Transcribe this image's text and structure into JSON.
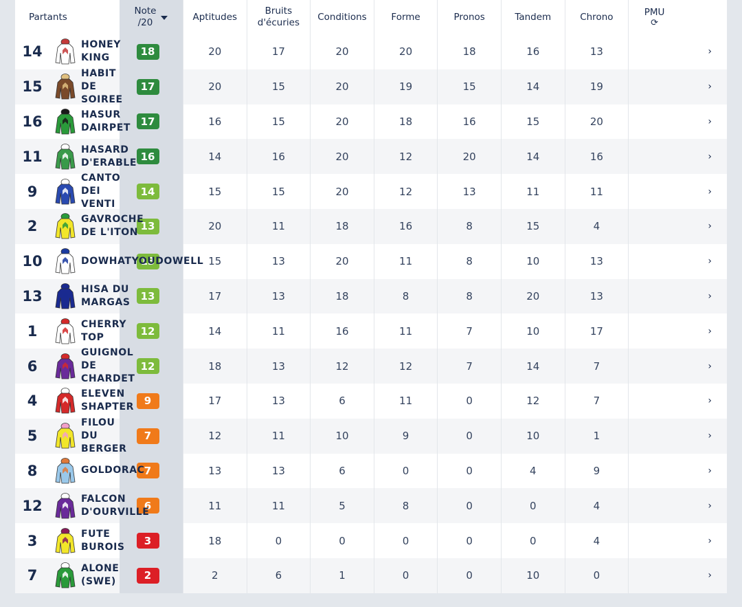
{
  "header": {
    "partants": "Partants",
    "note_line1": "Note",
    "note_line2": "/20",
    "aptitudes": "Aptitudes",
    "bruits_line1": "Bruits",
    "bruits_line2": "d'écuries",
    "conditions": "Conditions",
    "forme": "Forme",
    "pronos": "Pronos",
    "tandem": "Tandem",
    "chrono": "Chrono",
    "pmu": "PMU",
    "refresh_icon": "refresh-icon"
  },
  "colors": {
    "dark_green": "#2e8b3e",
    "light_green": "#7dbb3c",
    "orange": "#f07a1a",
    "red": "#dc1f26"
  },
  "rows": [
    {
      "num": "14",
      "name_l1": "HONEY",
      "name_l2": "KING",
      "name_l3": "",
      "name_l4": "",
      "note": "18",
      "note_color": "#2e8b3e",
      "aptitudes": "20",
      "bruits": "17",
      "conditions": "20",
      "forme": "20",
      "pronos": "18",
      "tandem": "16",
      "chrono": "13",
      "pmu": "›",
      "silk_primary": "#ffffff",
      "silk_secondary": "#c43a3a"
    },
    {
      "num": "15",
      "name_l1": "HABIT",
      "name_l2": "DE",
      "name_l3": "SOIREE",
      "name_l4": "",
      "note": "17",
      "note_color": "#2e8b3e",
      "aptitudes": "20",
      "bruits": "15",
      "conditions": "20",
      "forme": "19",
      "pronos": "15",
      "tandem": "14",
      "chrono": "19",
      "pmu": "›",
      "silk_primary": "#7a4a2a",
      "silk_secondary": "#e0c080"
    },
    {
      "num": "16",
      "name_l1": "HASUR",
      "name_l2": "DAIRPET",
      "name_l3": "",
      "name_l4": "",
      "note": "17",
      "note_color": "#2e8b3e",
      "aptitudes": "16",
      "bruits": "15",
      "conditions": "20",
      "forme": "18",
      "pronos": "16",
      "tandem": "15",
      "chrono": "20",
      "pmu": "›",
      "silk_primary": "#2a9a3a",
      "silk_secondary": "#1a1a1a"
    },
    {
      "num": "11",
      "name_l1": "HASARD",
      "name_l2": "D'ERABLE",
      "name_l3": "",
      "name_l4": "",
      "note": "16",
      "note_color": "#2e8b3e",
      "aptitudes": "14",
      "bruits": "16",
      "conditions": "20",
      "forme": "12",
      "pronos": "20",
      "tandem": "14",
      "chrono": "16",
      "pmu": "›",
      "silk_primary": "#3a9a4a",
      "silk_secondary": "#ffffff"
    },
    {
      "num": "9",
      "name_l1": "CANTO",
      "name_l2": "DEI",
      "name_l3": "VENTI",
      "name_l4": "",
      "note": "14",
      "note_color": "#7dbb3c",
      "aptitudes": "15",
      "bruits": "15",
      "conditions": "20",
      "forme": "12",
      "pronos": "13",
      "tandem": "11",
      "chrono": "11",
      "pmu": "›",
      "silk_primary": "#2a4ab0",
      "silk_secondary": "#ffffff"
    },
    {
      "num": "2",
      "name_l1": "GAVROCHE",
      "name_l2": "DE L'ITON",
      "name_l3": "",
      "name_l4": "",
      "note": "13",
      "note_color": "#7dbb3c",
      "aptitudes": "20",
      "bruits": "11",
      "conditions": "18",
      "forme": "16",
      "pronos": "8",
      "tandem": "15",
      "chrono": "4",
      "pmu": "›",
      "silk_primary": "#f2e62a",
      "silk_secondary": "#2a9a3a"
    },
    {
      "num": "10",
      "name_l1": "DOWHATYOUDOWELL",
      "name_l2": "",
      "name_l3": "",
      "name_l4": "",
      "note": "13",
      "note_color": "#7dbb3c",
      "aptitudes": "15",
      "bruits": "13",
      "conditions": "20",
      "forme": "11",
      "pronos": "8",
      "tandem": "10",
      "chrono": "13",
      "pmu": "›",
      "silk_primary": "#ffffff",
      "silk_secondary": "#1a3aa0"
    },
    {
      "num": "13",
      "name_l1": "HISA DU",
      "name_l2": "MARGAS",
      "name_l3": "",
      "name_l4": "",
      "note": "13",
      "note_color": "#7dbb3c",
      "aptitudes": "17",
      "bruits": "13",
      "conditions": "18",
      "forme": "8",
      "pronos": "8",
      "tandem": "20",
      "chrono": "13",
      "pmu": "›",
      "silk_primary": "#1a2a90",
      "silk_secondary": "#1a2a90"
    },
    {
      "num": "1",
      "name_l1": "CHERRY",
      "name_l2": "TOP",
      "name_l3": "",
      "name_l4": "",
      "note": "12",
      "note_color": "#7dbb3c",
      "aptitudes": "14",
      "bruits": "11",
      "conditions": "16",
      "forme": "11",
      "pronos": "7",
      "tandem": "10",
      "chrono": "17",
      "pmu": "›",
      "silk_primary": "#ffffff",
      "silk_secondary": "#d42a2a"
    },
    {
      "num": "6",
      "name_l1": "GUIGNOL",
      "name_l2": "DE",
      "name_l3": "CHARDET",
      "name_l4": "",
      "note": "12",
      "note_color": "#7dbb3c",
      "aptitudes": "18",
      "bruits": "13",
      "conditions": "12",
      "forme": "12",
      "pronos": "7",
      "tandem": "14",
      "chrono": "7",
      "pmu": "›",
      "silk_primary": "#6a2a9a",
      "silk_secondary": "#d42a2a"
    },
    {
      "num": "4",
      "name_l1": "ELEVEN",
      "name_l2": "SHAPTER",
      "name_l3": "",
      "name_l4": "",
      "note": "9",
      "note_color": "#f07a1a",
      "aptitudes": "17",
      "bruits": "13",
      "conditions": "6",
      "forme": "11",
      "pronos": "0",
      "tandem": "12",
      "chrono": "7",
      "pmu": "›",
      "silk_primary": "#d42a2a",
      "silk_secondary": "#ffffff"
    },
    {
      "num": "5",
      "name_l1": "FILOU",
      "name_l2": "DU",
      "name_l3": "BERGER",
      "name_l4": "",
      "note": "7",
      "note_color": "#f07a1a",
      "aptitudes": "12",
      "bruits": "11",
      "conditions": "10",
      "forme": "9",
      "pronos": "0",
      "tandem": "10",
      "chrono": "1",
      "pmu": "›",
      "silk_primary": "#f2e62a",
      "silk_secondary": "#f2a0c8"
    },
    {
      "num": "8",
      "name_l1": "GOLDORAC",
      "name_l2": "",
      "name_l3": "",
      "name_l4": "",
      "note": "7",
      "note_color": "#f07a1a",
      "aptitudes": "13",
      "bruits": "13",
      "conditions": "6",
      "forme": "0",
      "pronos": "0",
      "tandem": "4",
      "chrono": "9",
      "pmu": "›",
      "silk_primary": "#9ac8ea",
      "silk_secondary": "#e07a3a"
    },
    {
      "num": "12",
      "name_l1": "FALCON",
      "name_l2": "D'OURVILLE",
      "name_l3": "",
      "name_l4": "",
      "note": "6",
      "note_color": "#f07a1a",
      "aptitudes": "11",
      "bruits": "11",
      "conditions": "5",
      "forme": "8",
      "pronos": "0",
      "tandem": "0",
      "chrono": "4",
      "pmu": "›",
      "silk_primary": "#6a2a9a",
      "silk_secondary": "#ffffff"
    },
    {
      "num": "3",
      "name_l1": "FUTE",
      "name_l2": "BUROIS",
      "name_l3": "",
      "name_l4": "",
      "note": "3",
      "note_color": "#dc1f26",
      "aptitudes": "18",
      "bruits": "0",
      "conditions": "0",
      "forme": "0",
      "pronos": "0",
      "tandem": "0",
      "chrono": "4",
      "pmu": "›",
      "silk_primary": "#f2e62a",
      "silk_secondary": "#8a1a5a"
    },
    {
      "num": "7",
      "name_l1": "ALONE",
      "name_l2": "(SWE)",
      "name_l3": "",
      "name_l4": "",
      "note": "2",
      "note_color": "#dc1f26",
      "aptitudes": "2",
      "bruits": "6",
      "conditions": "1",
      "forme": "0",
      "pronos": "0",
      "tandem": "10",
      "chrono": "0",
      "pmu": "›",
      "silk_primary": "#2a9a3a",
      "silk_secondary": "#ffffff"
    }
  ]
}
